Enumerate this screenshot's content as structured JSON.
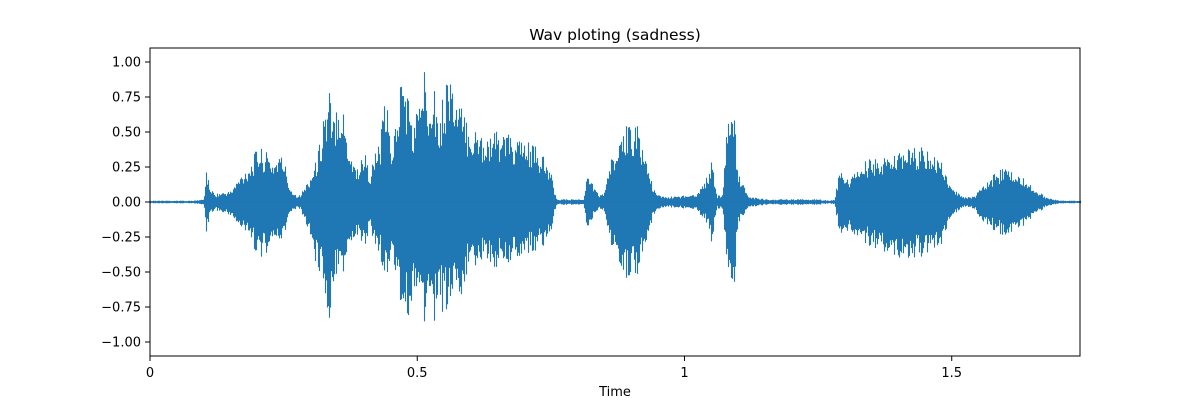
{
  "chart_data": {
    "type": "line",
    "title": "Wav ploting (sadness)",
    "xlabel": "Time",
    "ylabel": "",
    "xlim": [
      0,
      1.74
    ],
    "ylim": [
      -1.1,
      1.1
    ],
    "x_ticks": [
      0,
      0.5,
      1,
      1.5
    ],
    "x_tick_labels": [
      "0",
      "0.5",
      "1",
      "1.5"
    ],
    "y_ticks": [
      1.0,
      0.75,
      0.5,
      0.25,
      0.0,
      -0.25,
      -0.5,
      -0.75,
      -1.0
    ],
    "y_tick_labels": [
      "1.00",
      "0.75",
      "0.50",
      "0.25",
      "0.00",
      "−0.25",
      "−0.50",
      "−0.75",
      "−1.00"
    ],
    "grid": false,
    "series": [
      {
        "color": "#1f77b4",
        "x": [
          0,
          0.02,
          0.05,
          0.08,
          0.1,
          0.105,
          0.11,
          0.12,
          0.15,
          0.17,
          0.19,
          0.2,
          0.21,
          0.22,
          0.23,
          0.24,
          0.25,
          0.26,
          0.27,
          0.28,
          0.29,
          0.3,
          0.31,
          0.32,
          0.325,
          0.33,
          0.335,
          0.34,
          0.35,
          0.36,
          0.37,
          0.38,
          0.39,
          0.4,
          0.41,
          0.42,
          0.43,
          0.44,
          0.45,
          0.46,
          0.47,
          0.48,
          0.49,
          0.5,
          0.51,
          0.52,
          0.53,
          0.54,
          0.55,
          0.56,
          0.57,
          0.58,
          0.59,
          0.6,
          0.62,
          0.64,
          0.66,
          0.68,
          0.7,
          0.72,
          0.74,
          0.75,
          0.76,
          0.78,
          0.8,
          0.81,
          0.82,
          0.83,
          0.84,
          0.85,
          0.86,
          0.88,
          0.89,
          0.9,
          0.91,
          0.92,
          0.93,
          0.94,
          0.95,
          0.96,
          0.98,
          1.0,
          1.02,
          1.03,
          1.04,
          1.05,
          1.06,
          1.07,
          1.08,
          1.09,
          1.1,
          1.12,
          1.15,
          1.18,
          1.19,
          1.2,
          1.21,
          1.22,
          1.25,
          1.27,
          1.28,
          1.29,
          1.3,
          1.32,
          1.34,
          1.36,
          1.38,
          1.4,
          1.42,
          1.44,
          1.46,
          1.48,
          1.5,
          1.52,
          1.53,
          1.54,
          1.56,
          1.58,
          1.6,
          1.62,
          1.64,
          1.66,
          1.68,
          1.7,
          1.72,
          1.74
        ],
        "max": [
          0.01,
          0.01,
          0.01,
          0.01,
          0.02,
          0.25,
          0.12,
          0.06,
          0.08,
          0.2,
          0.3,
          0.4,
          0.38,
          0.35,
          0.3,
          0.35,
          0.32,
          0.12,
          0.06,
          0.05,
          0.12,
          0.2,
          0.3,
          0.5,
          0.75,
          0.62,
          0.85,
          0.55,
          0.8,
          0.7,
          0.45,
          0.3,
          0.25,
          0.4,
          0.2,
          0.35,
          0.45,
          0.8,
          0.4,
          0.6,
          0.95,
          0.85,
          0.55,
          0.7,
          0.98,
          0.85,
          0.95,
          0.55,
          0.85,
          1.0,
          0.75,
          0.7,
          0.6,
          0.55,
          0.5,
          0.5,
          0.52,
          0.45,
          0.45,
          0.4,
          0.3,
          0.2,
          0.02,
          0.02,
          0.02,
          0.02,
          0.25,
          0.1,
          0.05,
          0.08,
          0.3,
          0.42,
          0.55,
          0.6,
          0.58,
          0.42,
          0.3,
          0.1,
          0.05,
          0.04,
          0.04,
          0.05,
          0.06,
          0.1,
          0.18,
          0.3,
          0.05,
          0.05,
          0.6,
          0.75,
          0.2,
          0.04,
          0.02,
          0.02,
          0.02,
          0.02,
          0.02,
          0.02,
          0.02,
          0.01,
          0.02,
          0.25,
          0.15,
          0.22,
          0.3,
          0.32,
          0.33,
          0.35,
          0.38,
          0.4,
          0.38,
          0.28,
          0.1,
          0.04,
          0.04,
          0.04,
          0.12,
          0.22,
          0.25,
          0.22,
          0.15,
          0.08,
          0.03,
          0.01,
          0.01,
          0.01
        ],
        "min": [
          -0.01,
          -0.01,
          -0.01,
          -0.01,
          -0.02,
          -0.25,
          -0.1,
          -0.06,
          -0.1,
          -0.2,
          -0.3,
          -0.38,
          -0.4,
          -0.35,
          -0.3,
          -0.3,
          -0.25,
          -0.1,
          -0.06,
          -0.05,
          -0.15,
          -0.3,
          -0.45,
          -0.55,
          -0.68,
          -0.85,
          -0.9,
          -0.6,
          -0.6,
          -0.55,
          -0.4,
          -0.3,
          -0.25,
          -0.35,
          -0.2,
          -0.3,
          -0.4,
          -0.55,
          -0.42,
          -0.55,
          -0.8,
          -0.9,
          -0.75,
          -0.6,
          -0.85,
          -0.92,
          -1.0,
          -0.7,
          -0.85,
          -0.8,
          -0.6,
          -0.7,
          -0.55,
          -0.5,
          -0.45,
          -0.48,
          -0.45,
          -0.42,
          -0.38,
          -0.35,
          -0.3,
          -0.2,
          -0.02,
          -0.02,
          -0.02,
          -0.02,
          -0.25,
          -0.08,
          -0.05,
          -0.08,
          -0.3,
          -0.45,
          -0.55,
          -0.58,
          -0.55,
          -0.4,
          -0.3,
          -0.1,
          -0.05,
          -0.04,
          -0.04,
          -0.05,
          -0.06,
          -0.1,
          -0.15,
          -0.3,
          -0.05,
          -0.05,
          -0.48,
          -0.75,
          -0.15,
          -0.04,
          -0.02,
          -0.02,
          -0.02,
          -0.02,
          -0.02,
          -0.02,
          -0.02,
          -0.01,
          -0.02,
          -0.25,
          -0.2,
          -0.25,
          -0.3,
          -0.35,
          -0.38,
          -0.4,
          -0.4,
          -0.4,
          -0.38,
          -0.3,
          -0.1,
          -0.04,
          -0.04,
          -0.05,
          -0.15,
          -0.22,
          -0.25,
          -0.22,
          -0.15,
          -0.08,
          -0.03,
          -0.01,
          -0.01,
          -0.01
        ]
      }
    ]
  }
}
